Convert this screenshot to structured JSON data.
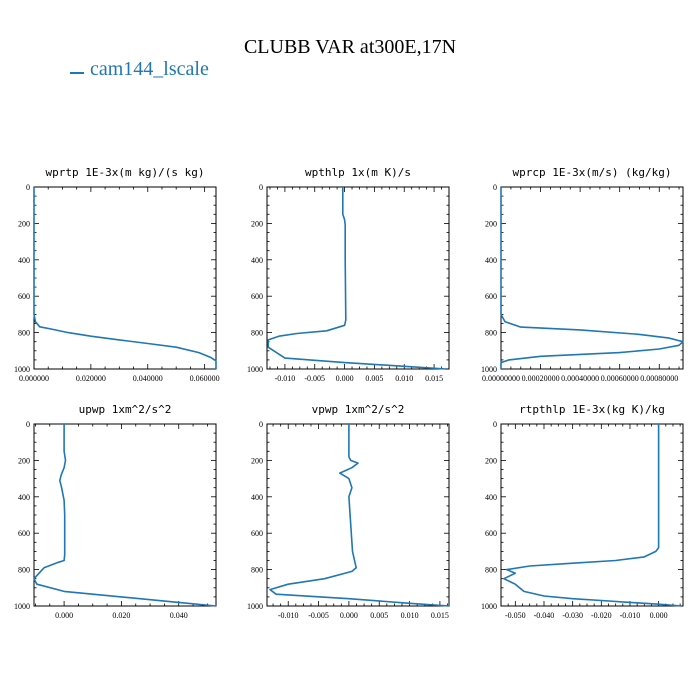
{
  "figure": {
    "title": "CLUBB VAR at300E,17N",
    "legend": "cam144_lscale",
    "line_color": "#1f77b4"
  },
  "chart_data": [
    {
      "type": "line",
      "title": "wprtp  1E-3x(m kg)/(s kg)",
      "xlim": [
        0,
        0.064
      ],
      "ylim": [
        1000,
        0
      ],
      "xticks": [
        0.0,
        0.02,
        0.04,
        0.06
      ],
      "xtick_labels": [
        "0.000000",
        "0.020000",
        "0.040000",
        "0.060000"
      ],
      "yticks": [
        0,
        200,
        400,
        600,
        800,
        1000
      ],
      "series": [
        {
          "x": [
            0.0,
            0.0,
            0.0005,
            0.002,
            0.006,
            0.012,
            0.02,
            0.03,
            0.04,
            0.05,
            0.058,
            0.062,
            0.064,
            0.064
          ],
          "y": [
            0,
            700,
            740,
            768,
            780,
            800,
            820,
            840,
            860,
            880,
            910,
            935,
            955,
            1000
          ]
        }
      ]
    },
    {
      "type": "line",
      "title": "wpthlp  1x(m K)/s",
      "xlim": [
        -0.013,
        0.0175
      ],
      "ylim": [
        1000,
        0
      ],
      "xticks": [
        -0.01,
        -0.005,
        0.0,
        0.005,
        0.01,
        0.015
      ],
      "xtick_labels": [
        "-0.010",
        "-0.005",
        "0.000",
        "0.005",
        "0.010",
        "0.015"
      ],
      "yticks": [
        0,
        200,
        400,
        600,
        800,
        1000
      ],
      "series": [
        {
          "x": [
            -0.0003,
            -0.0003,
            0.0,
            0.0001,
            0.0001,
            0.0002,
            0.0,
            -0.003,
            -0.008,
            -0.011,
            -0.0128,
            -0.0128,
            -0.01,
            0.0,
            0.01,
            0.017
          ],
          "y": [
            0,
            150,
            180,
            210,
            400,
            730,
            760,
            790,
            805,
            820,
            840,
            880,
            940,
            965,
            985,
            1000
          ]
        }
      ]
    },
    {
      "type": "line",
      "title": "wprcp  1E-3x(m/s) (kg/kg)",
      "xlim": [
        0,
        0.00092
      ],
      "ylim": [
        1000,
        0
      ],
      "xticks": [
        0.0,
        0.0002,
        0.0004,
        0.0006,
        0.0008
      ],
      "xtick_labels": [
        "0.00000000",
        "0.00020000",
        "0.00040000",
        "0.00060000",
        "0.00080000"
      ],
      "yticks": [
        0,
        200,
        400,
        600,
        800,
        1000
      ],
      "series": [
        {
          "x": [
            0.0,
            0.0,
            2e-05,
            0.0001,
            0.0004,
            0.0007,
            0.00085,
            0.00092,
            0.0009,
            0.0008,
            0.0006,
            0.0002,
            4e-05,
            0.0,
            0.0
          ],
          "y": [
            0,
            700,
            740,
            770,
            785,
            810,
            830,
            850,
            870,
            890,
            910,
            930,
            950,
            965,
            1000
          ]
        }
      ]
    },
    {
      "type": "line",
      "title": "upwp  1xm^2/s^2",
      "xlim": [
        -0.0105,
        0.053
      ],
      "ylim": [
        1000,
        0
      ],
      "xticks": [
        0.0,
        0.02,
        0.04
      ],
      "xtick_labels": [
        "0.000",
        "0.020",
        "0.040"
      ],
      "yticks": [
        0,
        200,
        400,
        600,
        800,
        1000
      ],
      "series": [
        {
          "x": [
            0.0,
            0.0,
            0.0005,
            0.0,
            -0.001,
            -0.0015,
            -0.001,
            -0.0005,
            0.0,
            0.0002,
            0.0002,
            0.0,
            -0.002,
            -0.007,
            -0.0105,
            -0.0095,
            0.0,
            0.02,
            0.04,
            0.053
          ],
          "y": [
            0,
            150,
            200,
            240,
            280,
            310,
            340,
            380,
            420,
            500,
            720,
            750,
            760,
            790,
            850,
            880,
            920,
            950,
            980,
            1000
          ]
        }
      ]
    },
    {
      "type": "line",
      "title": "vpwp  1xm^2/s^2",
      "xlim": [
        -0.0135,
        0.0165
      ],
      "ylim": [
        1000,
        0
      ],
      "xticks": [
        -0.01,
        -0.005,
        0.0,
        0.005,
        0.01,
        0.015
      ],
      "xtick_labels": [
        "-0.010",
        "-0.005",
        "0.000",
        "0.005",
        "0.010",
        "0.015"
      ],
      "yticks": [
        0,
        200,
        400,
        600,
        800,
        1000
      ],
      "series": [
        {
          "x": [
            0.0,
            0.0,
            0.0003,
            0.0015,
            0.0005,
            -0.0015,
            0.0,
            0.0005,
            0.0,
            0.0002,
            0.0006,
            0.0012,
            0.0005,
            -0.004,
            -0.01,
            -0.013,
            -0.012,
            0.0,
            0.01,
            0.0165
          ],
          "y": [
            0,
            180,
            200,
            215,
            240,
            270,
            300,
            350,
            400,
            500,
            700,
            790,
            810,
            850,
            880,
            910,
            935,
            960,
            985,
            1000
          ]
        }
      ]
    },
    {
      "type": "line",
      "title": "rtpthlp  1E-3x(kg K)/kg",
      "xlim": [
        -0.055,
        0.0085
      ],
      "ylim": [
        1000,
        0
      ],
      "xticks": [
        -0.05,
        -0.04,
        -0.03,
        -0.02,
        -0.01,
        0.0
      ],
      "xtick_labels": [
        "-0.050",
        "-0.040",
        "-0.030",
        "-0.020",
        "-0.010",
        "0.000"
      ],
      "yticks": [
        0,
        200,
        400,
        600,
        800,
        1000
      ],
      "series": [
        {
          "x": [
            0.0,
            0.0,
            -0.001,
            -0.005,
            -0.015,
            -0.03,
            -0.045,
            -0.053,
            -0.05,
            -0.054,
            -0.05,
            -0.047,
            -0.04,
            -0.03,
            -0.02,
            -0.01,
            0.0,
            0.008
          ],
          "y": [
            0,
            680,
            700,
            730,
            750,
            765,
            780,
            800,
            820,
            850,
            880,
            920,
            945,
            960,
            970,
            980,
            990,
            1000
          ]
        }
      ]
    }
  ]
}
